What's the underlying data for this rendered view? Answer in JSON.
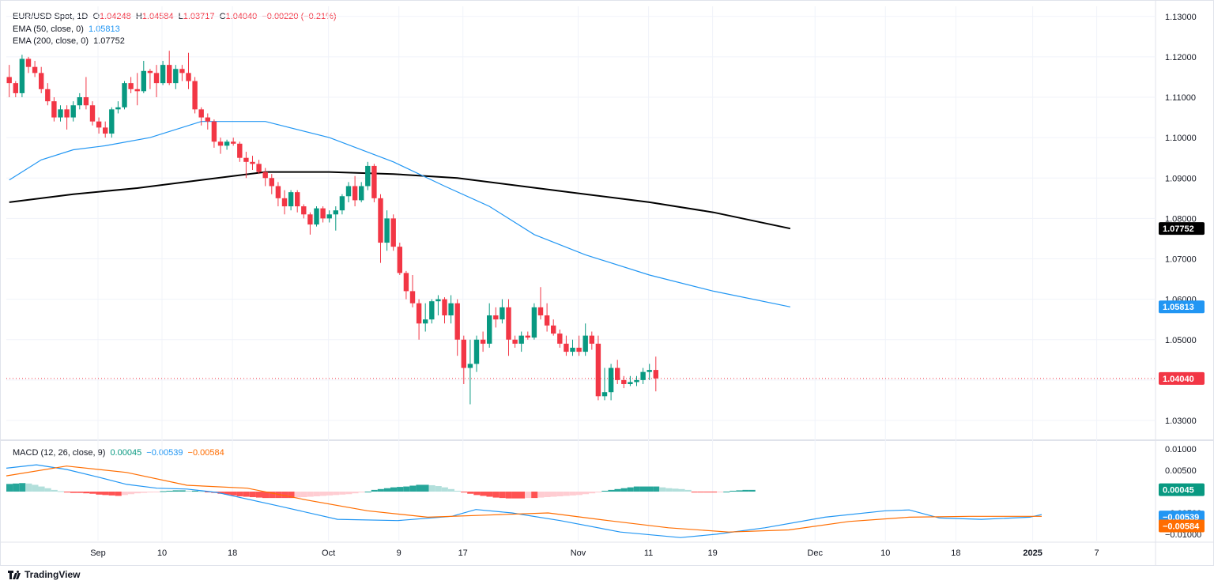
{
  "header": {
    "symbol": "EUR/USD Spot, 1D",
    "open": "1.04248",
    "high": "1.04584",
    "low": "1.03717",
    "close": "1.04040",
    "change": "−0.00220 (−0.21%)",
    "ema50_label": "EMA (50, close, 0)",
    "ema50_value": "1.05813",
    "ema200_label": "EMA (200, close, 0)",
    "ema200_value": "1.07752"
  },
  "macd_legend": {
    "label": "MACD (12, 26, close, 9)",
    "hist": "0.00045",
    "macd": "−0.00539",
    "signal": "−0.00584"
  },
  "brand": "TradingView",
  "colors": {
    "up": "#089981",
    "down": "#f23645",
    "ema50": "#2196f3",
    "ema200": "#000000",
    "signal": "#ff6d00"
  },
  "chart_data": {
    "type": "candlestick",
    "price_axis": {
      "ticks": [
        "1.13000",
        "1.12000",
        "1.11000",
        "1.10000",
        "1.09000",
        "1.08000",
        "1.07000",
        "1.06000",
        "1.05000",
        "1.04000",
        "1.03000"
      ],
      "range": [
        1.0255,
        1.1325
      ]
    },
    "macd_axis": {
      "ticks": [
        "0.01000",
        "0.00500",
        "0.00000",
        "−0.00500",
        "−0.01000"
      ],
      "range": [
        -0.0115,
        0.0117
      ]
    },
    "x_axis_labels": [
      "Sep",
      "10",
      "18",
      "Oct",
      "9",
      "17",
      "Nov",
      "11",
      "19",
      "Dec",
      "10",
      "18",
      "2025",
      "7"
    ],
    "last_price_label": "1.04040",
    "ema50_label": "1.05813",
    "ema200_label": "1.07752",
    "macd_hist_label": "0.00045",
    "macd_label": "−0.00539",
    "signal_label": "−0.00584",
    "candles": [
      [
        1.115,
        1.118,
        1.11,
        1.1135
      ],
      [
        1.1135,
        1.114,
        1.11,
        1.111
      ],
      [
        1.111,
        1.1205,
        1.11,
        1.1195
      ],
      [
        1.1195,
        1.12,
        1.116,
        1.1175
      ],
      [
        1.1175,
        1.119,
        1.115,
        1.116
      ],
      [
        1.116,
        1.1175,
        1.111,
        1.112
      ],
      [
        1.112,
        1.1135,
        1.108,
        1.109
      ],
      [
        1.109,
        1.11,
        1.104,
        1.105
      ],
      [
        1.105,
        1.108,
        1.104,
        1.107
      ],
      [
        1.107,
        1.108,
        1.102,
        1.105
      ],
      [
        1.105,
        1.109,
        1.104,
        1.108
      ],
      [
        1.108,
        1.111,
        1.107,
        1.11
      ],
      [
        1.11,
        1.115,
        1.107,
        1.108
      ],
      [
        1.108,
        1.109,
        1.103,
        1.104
      ],
      [
        1.104,
        1.105,
        1.101,
        1.1025
      ],
      [
        1.1025,
        1.104,
        1.1,
        1.101
      ],
      [
        1.101,
        1.1075,
        1.1,
        1.107
      ],
      [
        1.107,
        1.109,
        1.106,
        1.1075
      ],
      [
        1.1075,
        1.114,
        1.107,
        1.1135
      ],
      [
        1.1135,
        1.115,
        1.111,
        1.112
      ],
      [
        1.112,
        1.116,
        1.108,
        1.1115
      ],
      [
        1.1115,
        1.119,
        1.111,
        1.1165
      ],
      [
        1.1165,
        1.117,
        1.112,
        1.116
      ],
      [
        1.116,
        1.118,
        1.11,
        1.1135
      ],
      [
        1.1135,
        1.119,
        1.113,
        1.118
      ],
      [
        1.118,
        1.1215,
        1.113,
        1.1135
      ],
      [
        1.1135,
        1.118,
        1.112,
        1.117
      ],
      [
        1.117,
        1.118,
        1.114,
        1.116
      ],
      [
        1.116,
        1.121,
        1.112,
        1.114
      ],
      [
        1.114,
        1.115,
        1.106,
        1.107
      ],
      [
        1.107,
        1.1075,
        1.103,
        1.105
      ],
      [
        1.105,
        1.106,
        1.102,
        1.104
      ],
      [
        1.104,
        1.1045,
        1.0975,
        1.099
      ],
      [
        1.099,
        1.1,
        1.096,
        1.098
      ],
      [
        1.098,
        1.0995,
        1.097,
        1.099
      ],
      [
        1.099,
        1.1,
        1.098,
        1.0985
      ],
      [
        1.0985,
        1.099,
        1.094,
        1.095
      ],
      [
        1.095,
        1.0965,
        1.09,
        1.094
      ],
      [
        1.094,
        1.0955,
        1.092,
        1.0935
      ],
      [
        1.0935,
        1.0945,
        1.091,
        1.0915
      ],
      [
        1.0915,
        1.0925,
        1.088,
        1.09
      ],
      [
        1.09,
        1.091,
        1.086,
        1.088
      ],
      [
        1.088,
        1.089,
        1.083,
        1.085
      ],
      [
        1.085,
        1.087,
        1.081,
        1.083
      ],
      [
        1.083,
        1.087,
        1.082,
        1.0865
      ],
      [
        1.0865,
        1.087,
        1.0815,
        1.083
      ],
      [
        1.083,
        1.0835,
        1.08,
        1.081
      ],
      [
        1.081,
        1.0815,
        1.076,
        1.0785
      ],
      [
        1.0785,
        1.083,
        1.078,
        1.0825
      ],
      [
        1.0825,
        1.083,
        1.079,
        1.08
      ],
      [
        1.08,
        1.082,
        1.079,
        1.081
      ],
      [
        1.081,
        1.083,
        1.077,
        1.082
      ],
      [
        1.082,
        1.086,
        1.081,
        1.0855
      ],
      [
        1.0855,
        1.089,
        1.084,
        1.088
      ],
      [
        1.088,
        1.0905,
        1.083,
        1.0845
      ],
      [
        1.0845,
        1.089,
        1.084,
        1.088
      ],
      [
        1.088,
        1.094,
        1.087,
        1.093
      ],
      [
        1.093,
        1.0935,
        1.084,
        1.085
      ],
      [
        1.085,
        1.086,
        1.069,
        1.074
      ],
      [
        1.074,
        1.082,
        1.072,
        1.08
      ],
      [
        1.08,
        1.081,
        1.072,
        1.073
      ],
      [
        1.073,
        1.074,
        1.066,
        1.0665
      ],
      [
        1.0665,
        1.067,
        1.06,
        1.062
      ],
      [
        1.062,
        1.066,
        1.058,
        1.059
      ],
      [
        1.059,
        1.06,
        1.05,
        1.054
      ],
      [
        1.054,
        1.059,
        1.052,
        1.055
      ],
      [
        1.055,
        1.06,
        1.054,
        1.0595
      ],
      [
        1.0595,
        1.061,
        1.056,
        1.06
      ],
      [
        1.06,
        1.0605,
        1.054,
        1.056
      ],
      [
        1.056,
        1.061,
        1.054,
        1.059
      ],
      [
        1.059,
        1.06,
        1.046,
        1.05
      ],
      [
        1.05,
        1.051,
        1.039,
        1.043
      ],
      [
        1.043,
        1.05,
        1.034,
        1.044
      ],
      [
        1.044,
        1.051,
        1.042,
        1.05
      ],
      [
        1.05,
        1.052,
        1.047,
        1.049
      ],
      [
        1.049,
        1.059,
        1.048,
        1.056
      ],
      [
        1.056,
        1.058,
        1.053,
        1.055
      ],
      [
        1.055,
        1.06,
        1.054,
        1.058
      ],
      [
        1.058,
        1.06,
        1.046,
        1.05
      ],
      [
        1.05,
        1.051,
        1.048,
        1.049
      ],
      [
        1.049,
        1.052,
        1.047,
        1.051
      ],
      [
        1.051,
        1.052,
        1.05,
        1.0505
      ],
      [
        1.0505,
        1.059,
        1.05,
        1.058
      ],
      [
        1.058,
        1.063,
        1.055,
        1.056
      ],
      [
        1.056,
        1.059,
        1.052,
        1.0535
      ],
      [
        1.0535,
        1.055,
        1.051,
        1.0515
      ],
      [
        1.0515,
        1.0525,
        1.048,
        1.049
      ],
      [
        1.049,
        1.051,
        1.046,
        1.047
      ],
      [
        1.047,
        1.05,
        1.046,
        1.048
      ],
      [
        1.048,
        1.051,
        1.046,
        1.047
      ],
      [
        1.047,
        1.054,
        1.046,
        1.051
      ],
      [
        1.051,
        1.052,
        1.0475,
        1.049
      ],
      [
        1.049,
        1.051,
        1.035,
        1.036
      ],
      [
        1.036,
        1.043,
        1.035,
        1.037
      ],
      [
        1.037,
        1.044,
        1.035,
        1.043
      ],
      [
        1.043,
        1.045,
        1.039,
        1.04
      ],
      [
        1.04,
        1.041,
        1.038,
        1.039
      ],
      [
        1.039,
        1.041,
        1.0385,
        1.0395
      ],
      [
        1.0395,
        1.041,
        1.0385,
        1.04
      ],
      [
        1.04,
        1.043,
        1.039,
        1.042
      ],
      [
        1.042,
        1.044,
        1.04,
        1.0425
      ],
      [
        1.0425,
        1.0458,
        1.0372,
        1.0404
      ]
    ],
    "ema50": [
      [
        0,
        1.0895
      ],
      [
        5,
        1.0945
      ],
      [
        10,
        1.097
      ],
      [
        15,
        1.098
      ],
      [
        22,
        1.1
      ],
      [
        30,
        1.104
      ],
      [
        40,
        1.104
      ],
      [
        50,
        1.1
      ],
      [
        60,
        1.094
      ],
      [
        68,
        1.088
      ],
      [
        75,
        1.083
      ],
      [
        82,
        1.076
      ],
      [
        90,
        1.071
      ],
      [
        100,
        1.066
      ],
      [
        110,
        1.062
      ],
      [
        122,
        1.0581
      ]
    ],
    "ema200": [
      [
        0,
        1.084
      ],
      [
        10,
        1.086
      ],
      [
        20,
        1.0875
      ],
      [
        30,
        1.0895
      ],
      [
        40,
        1.0915
      ],
      [
        50,
        1.0915
      ],
      [
        60,
        1.091
      ],
      [
        70,
        1.09
      ],
      [
        80,
        1.088
      ],
      [
        90,
        1.086
      ],
      [
        100,
        1.084
      ],
      [
        110,
        1.0815
      ],
      [
        122,
        1.0775
      ]
    ],
    "macd_hist": [
      0.0018,
      0.0019,
      0.002,
      0.0019,
      0.0016,
      0.0012,
      0.0008,
      0.0004,
      0.0001,
      -0.0002,
      -0.0003,
      -0.0003,
      -0.0004,
      -0.0005,
      -0.0007,
      -0.0008,
      -0.0009,
      -0.001,
      -0.0008,
      -0.0006,
      -0.0004,
      -0.0003,
      -0.0002,
      -0.0001,
      0.0001,
      0.0002,
      0.0003,
      0.0003,
      0.0002,
      0.0002,
      0.0001,
      -0.0001,
      -0.0003,
      -0.0005,
      -0.0007,
      -0.0009,
      -0.0011,
      -0.0012,
      -0.0013,
      -0.0014,
      -0.0015,
      -0.0015,
      -0.0015,
      -0.0015,
      -0.0015,
      -0.0014,
      -0.0013,
      -0.0012,
      -0.0011,
      -0.001,
      -0.0009,
      -0.0008,
      -0.0007,
      -0.0006,
      -0.0004,
      -0.0002,
      0.0,
      0.0004,
      0.0006,
      0.0008,
      0.001,
      0.0011,
      0.0012,
      0.0014,
      0.0016,
      0.0016,
      0.0015,
      0.0013,
      0.001,
      0.0006,
      0.0002,
      -0.0002,
      -0.0005,
      -0.0008,
      -0.001,
      -0.0012,
      -0.0014,
      -0.0015,
      -0.0016,
      -0.0016,
      -0.0016,
      -0.0015,
      -0.0015,
      -0.0014,
      -0.0013,
      -0.0012,
      -0.0011,
      -0.001,
      -0.0009,
      -0.0008,
      -0.0006,
      -0.0004,
      -0.0002,
      0.0002,
      0.0004,
      0.0006,
      0.0008,
      0.001,
      0.0012,
      0.0012,
      0.0012,
      0.0012,
      0.001,
      0.0008,
      0.0007,
      0.0006,
      0.0004,
      -0.0002,
      -0.0002,
      -0.0002,
      -0.0002,
      -0.0001,
      0.0,
      0.0002,
      0.0003,
      0.0004,
      0.0004
    ],
    "macd_line": [
      [
        0,
        0.0055
      ],
      [
        5,
        0.0063
      ],
      [
        10,
        0.0052
      ],
      [
        15,
        0.0035
      ],
      [
        20,
        0.0017
      ],
      [
        25,
        0.0008
      ],
      [
        30,
        0.0006
      ],
      [
        35,
        -0.0002
      ],
      [
        45,
        -0.0033
      ],
      [
        55,
        -0.0065
      ],
      [
        65,
        -0.0068
      ],
      [
        74,
        -0.0058
      ],
      [
        78,
        -0.0042
      ],
      [
        84,
        -0.005
      ],
      [
        92,
        -0.0068
      ],
      [
        102,
        -0.0095
      ],
      [
        112,
        -0.0108
      ],
      [
        118,
        -0.01
      ],
      [
        126,
        -0.0085
      ],
      [
        136,
        -0.006
      ],
      [
        146,
        -0.0045
      ],
      [
        150,
        -0.0043
      ],
      [
        155,
        -0.0062
      ],
      [
        162,
        -0.0065
      ],
      [
        170,
        -0.006
      ],
      [
        172,
        -0.0054
      ]
    ],
    "signal_line": [
      [
        0,
        0.0037
      ],
      [
        10,
        0.006
      ],
      [
        20,
        0.0045
      ],
      [
        30,
        0.0015
      ],
      [
        40,
        0.0008
      ],
      [
        50,
        -0.002
      ],
      [
        60,
        -0.0045
      ],
      [
        70,
        -0.006
      ],
      [
        80,
        -0.0055
      ],
      [
        90,
        -0.005
      ],
      [
        100,
        -0.0068
      ],
      [
        110,
        -0.0085
      ],
      [
        120,
        -0.0095
      ],
      [
        130,
        -0.009
      ],
      [
        140,
        -0.007
      ],
      [
        150,
        -0.006
      ],
      [
        160,
        -0.0058
      ],
      [
        172,
        -0.0058
      ]
    ]
  }
}
